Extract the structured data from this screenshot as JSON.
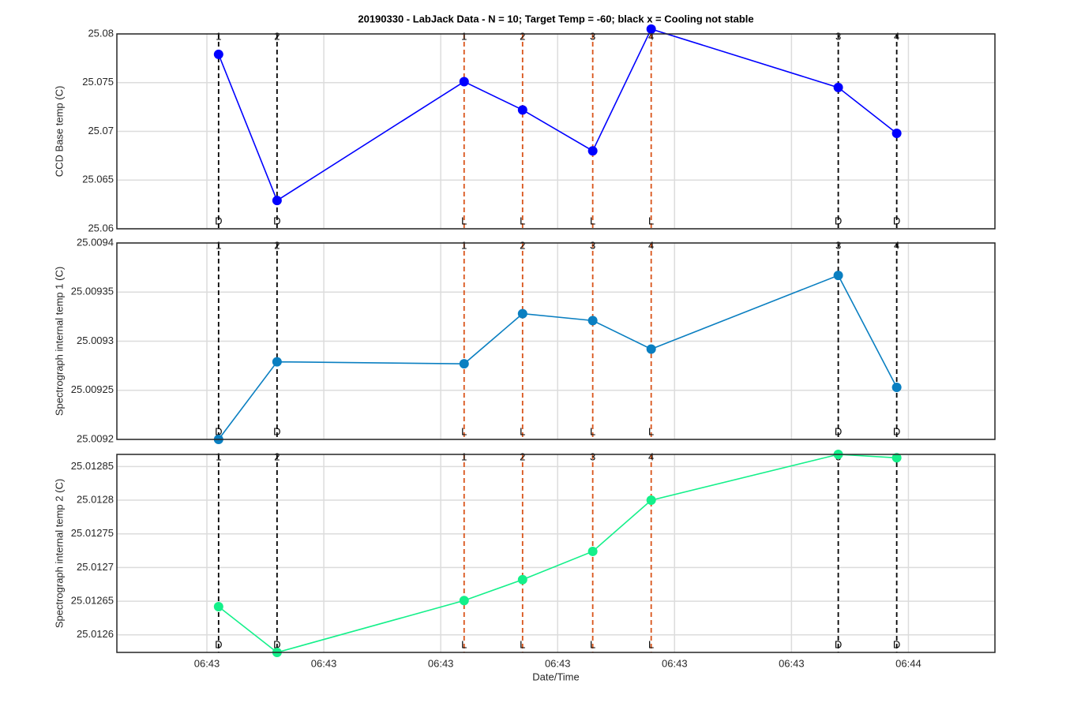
{
  "chart_data": [
    {
      "type": "line",
      "title": "20190330 - LabJack Data - N = 10; Target Temp = -60; black x = Cooling not stable",
      "ylabel": "CCD Base temp (C)",
      "x": [
        1,
        6,
        22,
        27,
        33,
        38,
        54,
        59
      ],
      "xlim": [
        -7.7,
        67.4
      ],
      "series": [
        {
          "color": "#0000ff",
          "values": [
            25.0779,
            25.0629,
            25.0751,
            25.0722,
            25.068,
            25.0805,
            25.0745,
            25.0698
          ]
        }
      ],
      "ylim": [
        25.06,
        25.08
      ],
      "yticks": [
        25.06,
        25.065,
        25.07,
        25.075,
        25.08
      ],
      "grid": true
    },
    {
      "type": "line",
      "ylabel": "Spectrograph internal temp 1 (C)",
      "x": [
        1,
        6,
        22,
        27,
        33,
        38,
        54,
        59
      ],
      "xlim": [
        -7.7,
        67.4
      ],
      "series": [
        {
          "color": "#0a7fc1",
          "values": [
            25.0092,
            25.009279,
            25.009277,
            25.009328,
            25.009321,
            25.009292,
            25.009367,
            25.009253
          ]
        }
      ],
      "ylim": [
        25.0092,
        25.0094
      ],
      "yticks": [
        25.0092,
        25.00925,
        25.0093,
        25.00935,
        25.0094
      ],
      "grid": true
    },
    {
      "type": "line",
      "ylabel": "Spectrograph internal temp 2 (C)",
      "xlabel": "Date/Time",
      "x": [
        1,
        6,
        22,
        27,
        33,
        38,
        54,
        59
      ],
      "xlim": [
        -7.7,
        67.4
      ],
      "xticks": [
        {
          "value": 0,
          "label": "06:43"
        },
        {
          "value": 10,
          "label": "06:43"
        },
        {
          "value": 20,
          "label": "06:43"
        },
        {
          "value": 30,
          "label": "06:43"
        },
        {
          "value": 40,
          "label": "06:43"
        },
        {
          "value": 50,
          "label": "06:43"
        },
        {
          "value": 60,
          "label": "06:44"
        }
      ],
      "series": [
        {
          "color": "#14f08a",
          "values": [
            25.012642,
            25.012574,
            25.012651,
            25.012682,
            25.012724,
            25.0128,
            25.012868,
            25.012863
          ]
        }
      ],
      "ylim": [
        25.012574,
        25.012868
      ],
      "yticks": [
        25.0126,
        25.01265,
        25.0127,
        25.01275,
        25.0128,
        25.01285
      ],
      "grid": true
    }
  ],
  "events": {
    "numbers": [
      "1",
      "2",
      "1",
      "2",
      "3",
      "4",
      "3",
      "4"
    ],
    "kinds": [
      "D",
      "D",
      "L",
      "L",
      "L",
      "L",
      "D",
      "D"
    ],
    "colors": {
      "D": "#000000",
      "L": "#d95319"
    }
  }
}
